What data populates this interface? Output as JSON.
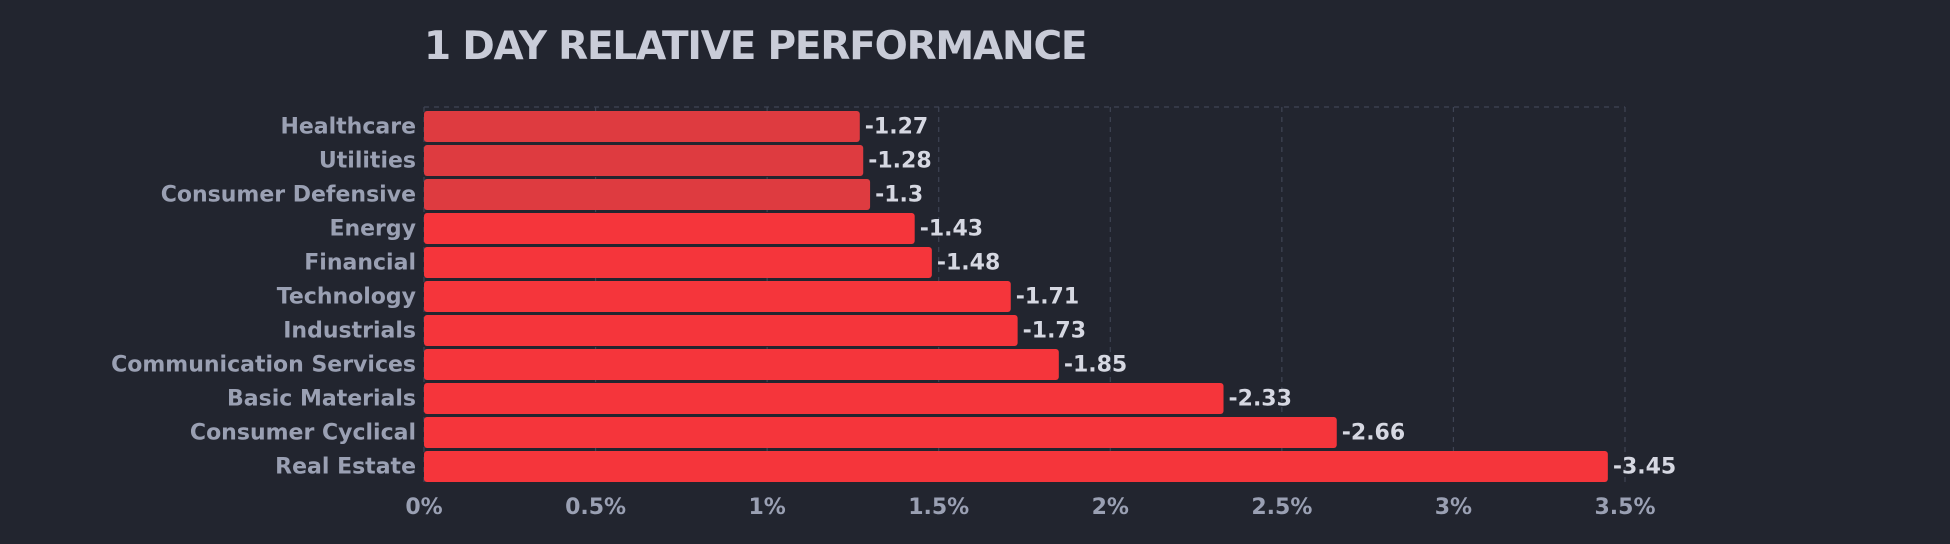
{
  "chart_data": {
    "type": "bar",
    "orientation": "horizontal",
    "title": "1 DAY RELATIVE PERFORMANCE",
    "categories": [
      "Healthcare",
      "Utilities",
      "Consumer Defensive",
      "Energy",
      "Financial",
      "Technology",
      "Industrials",
      "Communication Services",
      "Basic Materials",
      "Consumer Cyclical",
      "Real Estate"
    ],
    "values": [
      -1.27,
      -1.28,
      -1.3,
      -1.43,
      -1.48,
      -1.71,
      -1.73,
      -1.85,
      -2.33,
      -2.66,
      -3.45
    ],
    "value_labels": [
      "-1.27",
      "-1.28",
      "-1.3",
      "-1.43",
      "-1.48",
      "-1.71",
      "-1.73",
      "-1.85",
      "-2.33",
      "-2.66",
      "-3.45"
    ],
    "x_ticks": [
      "0%",
      "0.5%",
      "1%",
      "1.5%",
      "2%",
      "2.5%",
      "3%",
      "3.5%"
    ],
    "xlim": [
      0,
      3.5
    ],
    "grid": true,
    "colors": {
      "background": "#22252f",
      "bar_light": "#de3b40",
      "bar_strong": "#f5353b",
      "title": "#c9ccd8",
      "label": "#9aa0b3",
      "value": "#d6d8e2",
      "grid": "#3f4454"
    }
  }
}
